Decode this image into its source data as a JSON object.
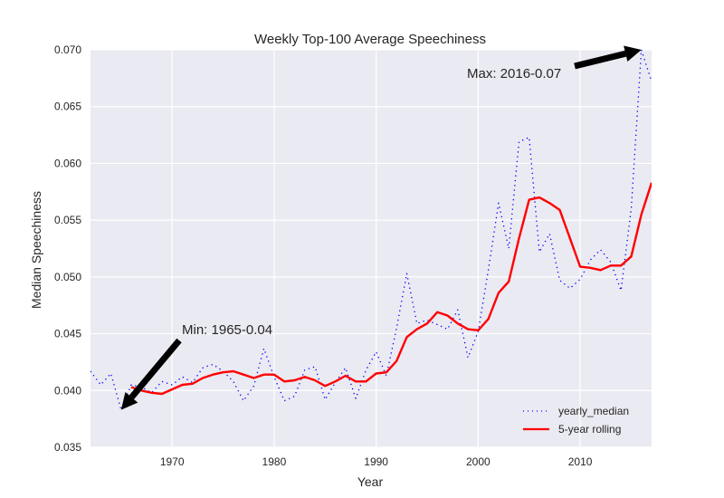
{
  "chart_data": {
    "type": "line",
    "title": "Weekly Top-100 Average Speechiness",
    "xlabel": "Year",
    "ylabel": "Median Speechiness",
    "xlim": [
      1962,
      2017
    ],
    "ylim": [
      0.035,
      0.07
    ],
    "grid": true,
    "xticks": [
      1970,
      1980,
      1990,
      2000,
      2010
    ],
    "xtick_labels": [
      "1970",
      "1980",
      "1990",
      "2000",
      "2010"
    ],
    "yticks": [
      0.035,
      0.04,
      0.045,
      0.05,
      0.055,
      0.06,
      0.065,
      0.07
    ],
    "ytick_labels": [
      "0.035",
      "0.040",
      "0.045",
      "0.050",
      "0.055",
      "0.060",
      "0.065",
      "0.070"
    ],
    "legend_position": "lower-right",
    "colors": {
      "background": "#eaeaf2",
      "grid": "#ffffff",
      "yearly_median": "#0000ff",
      "rolling": "#ff0000",
      "arrow": "#000000"
    },
    "series": [
      {
        "name": "yearly_median",
        "style": "dotted",
        "x": [
          1962,
          1963,
          1964,
          1965,
          1966,
          1967,
          1968,
          1969,
          1970,
          1971,
          1972,
          1973,
          1974,
          1975,
          1976,
          1977,
          1978,
          1979,
          1980,
          1981,
          1982,
          1983,
          1984,
          1985,
          1986,
          1987,
          1988,
          1989,
          1990,
          1991,
          1992,
          1993,
          1994,
          1995,
          1996,
          1997,
          1998,
          1999,
          2000,
          2001,
          2002,
          2003,
          2004,
          2005,
          2006,
          2007,
          2008,
          2009,
          2010,
          2011,
          2012,
          2013,
          2014,
          2015,
          2016,
          2017
        ],
        "values": [
          0.0417,
          0.0405,
          0.0415,
          0.0383,
          0.0405,
          0.0403,
          0.0398,
          0.0408,
          0.0405,
          0.0412,
          0.0407,
          0.042,
          0.0423,
          0.0417,
          0.0408,
          0.0391,
          0.0404,
          0.0437,
          0.0412,
          0.0391,
          0.0395,
          0.0418,
          0.0421,
          0.0392,
          0.0407,
          0.042,
          0.0393,
          0.0418,
          0.0434,
          0.0413,
          0.0455,
          0.0503,
          0.0459,
          0.0462,
          0.0458,
          0.0454,
          0.0471,
          0.0429,
          0.0452,
          0.0506,
          0.0565,
          0.0525,
          0.0619,
          0.0623,
          0.0522,
          0.0538,
          0.0497,
          0.049,
          0.0498,
          0.0515,
          0.0524,
          0.0513,
          0.0488,
          0.056,
          0.07,
          0.0672
        ]
      },
      {
        "name": "5-year rolling",
        "style": "solid",
        "x": [
          1966,
          1967,
          1968,
          1969,
          1970,
          1971,
          1972,
          1973,
          1974,
          1975,
          1976,
          1977,
          1978,
          1979,
          1980,
          1981,
          1982,
          1983,
          1984,
          1985,
          1986,
          1987,
          1988,
          1989,
          1990,
          1991,
          1992,
          1993,
          1994,
          1995,
          1996,
          1997,
          1998,
          1999,
          2000,
          2001,
          2002,
          2003,
          2004,
          2005,
          2006,
          2007,
          2008,
          2009,
          2010,
          2011,
          2012,
          2013,
          2014,
          2015,
          2016,
          2017
        ],
        "values": [
          0.0403,
          0.04,
          0.0398,
          0.0397,
          0.0401,
          0.0405,
          0.0406,
          0.0411,
          0.0414,
          0.0416,
          0.0417,
          0.0414,
          0.0411,
          0.0414,
          0.0414,
          0.0408,
          0.0409,
          0.0412,
          0.0409,
          0.0404,
          0.0408,
          0.0413,
          0.0408,
          0.0408,
          0.0415,
          0.0416,
          0.0426,
          0.0447,
          0.0454,
          0.0459,
          0.0469,
          0.0466,
          0.0459,
          0.0454,
          0.0453,
          0.0463,
          0.0486,
          0.0496,
          0.0534,
          0.0568,
          0.057,
          0.0565,
          0.0559,
          0.0534,
          0.0509,
          0.0508,
          0.0506,
          0.051,
          0.051,
          0.0518,
          0.0555,
          0.0583
        ]
      }
    ],
    "annotations": [
      {
        "text": "Min: 1965-0.04",
        "target": [
          1965,
          0.0383
        ],
        "text_at": [
          1971,
          0.0447
        ]
      },
      {
        "text": "Max: 2016-0.07",
        "target": [
          2016,
          0.07
        ],
        "text_at": [
          1999,
          0.0674
        ]
      }
    ]
  }
}
